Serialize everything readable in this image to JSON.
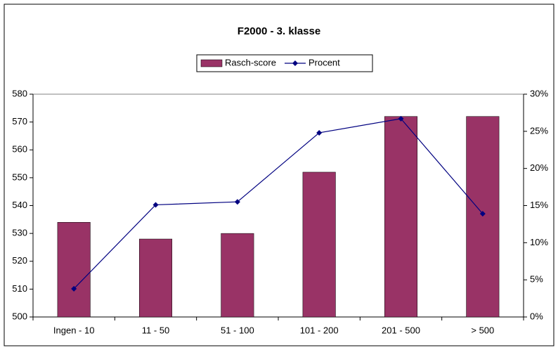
{
  "chart_data": {
    "type": "bar",
    "title": "F2000 - 3. klasse",
    "categories": [
      "Ingen - 10",
      "11 - 50",
      "51 - 100",
      "101 - 200",
      "201 - 500",
      "> 500"
    ],
    "series": [
      {
        "name": "Rasch-score",
        "type": "bar",
        "color": "#993366",
        "values": [
          534,
          528,
          530,
          552,
          572,
          572
        ]
      },
      {
        "name": "Procent",
        "type": "line",
        "axis": "y2",
        "color": "#000080",
        "values": [
          3.8,
          15.1,
          15.5,
          24.8,
          26.7,
          13.9
        ]
      }
    ],
    "ylim": [
      500,
      580
    ],
    "yticks": [
      500,
      510,
      520,
      530,
      540,
      550,
      560,
      570,
      580
    ],
    "y2lim": [
      0,
      30
    ],
    "y2ticks": [
      {
        "value": 0,
        "label": "0%"
      },
      {
        "value": 5,
        "label": "5%"
      },
      {
        "value": 10,
        "label": "10%"
      },
      {
        "value": 15,
        "label": "15%"
      },
      {
        "value": 20,
        "label": "20%"
      },
      {
        "value": 25,
        "label": "25%"
      },
      {
        "value": 30,
        "label": "30%"
      }
    ],
    "legend": "top"
  }
}
